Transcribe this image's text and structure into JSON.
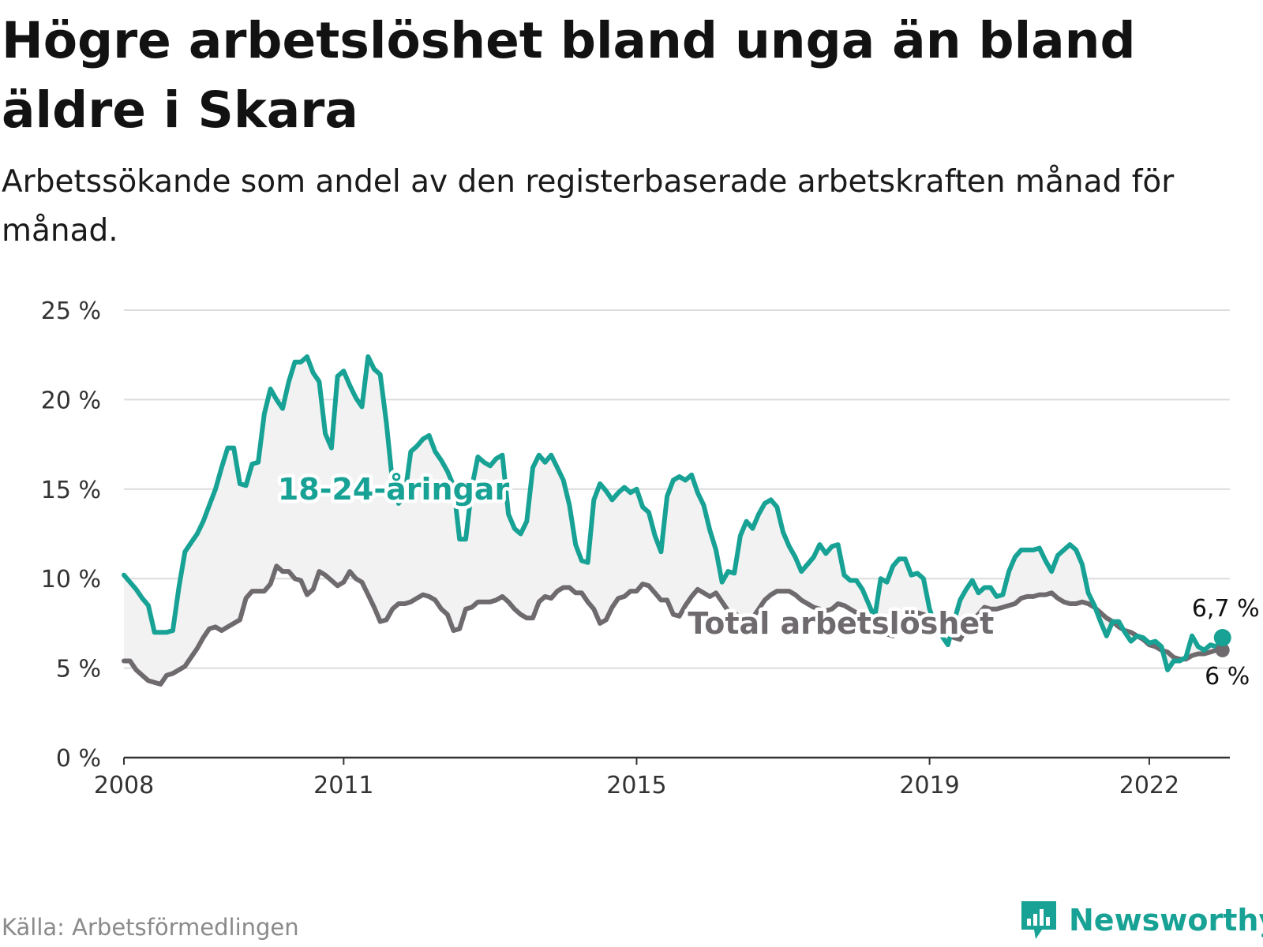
{
  "title": "Högre arbetslöshet bland unga än bland äldre i Skara",
  "subtitle": "Arbetssökande som andel av den registerbaserade arbetskraften månad för månad.",
  "source": "Källa: Arbetsförmedlingen",
  "brand": "Newsworthy",
  "colors": {
    "youth": "#17a295",
    "total": "#6e6a6e",
    "grid": "#dcdcdc",
    "axis": "#333333",
    "fill": "#f2f2f2"
  },
  "chart_data": {
    "type": "line",
    "x_start": "2008-01",
    "x_range": [
      2008,
      2023.1
    ],
    "ylim": [
      0,
      25
    ],
    "y_ticks": [
      0,
      5,
      10,
      15,
      20,
      25
    ],
    "y_tick_labels": [
      "0 %",
      "5 %",
      "10 %",
      "15 %",
      "20 %",
      "25 %"
    ],
    "x_ticks": [
      2008,
      2011,
      2015,
      2019,
      2022
    ],
    "x_tick_labels": [
      "2008",
      "2011",
      "2015",
      "2019",
      "2022"
    ],
    "grid": true,
    "series": [
      {
        "name": "18-24-åringar",
        "color": "#17a295",
        "end_label": "6,7 %",
        "values": [
          10.2,
          9.8,
          9.4,
          8.9,
          8.5,
          7.0,
          7.0,
          7.0,
          7.1,
          9.5,
          11.5,
          12.0,
          12.5,
          13.2,
          14.1,
          15.0,
          16.2,
          17.3,
          17.3,
          15.3,
          15.2,
          16.4,
          16.5,
          19.2,
          20.6,
          20.0,
          19.5,
          21.0,
          22.1,
          22.1,
          22.4,
          21.5,
          21.0,
          18.1,
          17.3,
          21.3,
          21.6,
          20.8,
          20.1,
          19.6,
          22.4,
          21.7,
          21.4,
          18.7,
          15.4,
          14.2,
          14.6,
          17.1,
          17.4,
          17.8,
          18.0,
          17.1,
          16.6,
          16.0,
          15.2,
          12.2,
          12.2,
          15.1,
          16.8,
          16.5,
          16.3,
          16.7,
          16.9,
          13.6,
          12.8,
          12.5,
          13.2,
          16.2,
          16.9,
          16.5,
          16.9,
          16.2,
          15.5,
          14.1,
          11.9,
          11.0,
          10.9,
          14.4,
          15.3,
          14.9,
          14.4,
          14.8,
          15.1,
          14.8,
          15.0,
          14.0,
          13.7,
          12.4,
          11.5,
          14.6,
          15.5,
          15.7,
          15.5,
          15.8,
          14.8,
          14.1,
          12.7,
          11.6,
          9.8,
          10.4,
          10.3,
          12.4,
          13.2,
          12.8,
          13.6,
          14.2,
          14.4,
          14.0,
          12.6,
          11.8,
          11.2,
          10.4,
          10.8,
          11.2,
          11.9,
          11.4,
          11.8,
          11.9,
          10.2,
          9.9,
          9.9,
          9.4,
          8.6,
          7.8,
          10.0,
          9.8,
          10.7,
          11.1,
          11.1,
          10.2,
          10.3,
          10.0,
          8.3,
          7.3,
          6.8,
          6.3,
          7.6,
          8.8,
          9.4,
          9.9,
          9.2,
          9.5,
          9.5,
          9.0,
          9.1,
          10.4,
          11.2,
          11.6,
          11.6,
          11.6,
          11.7,
          11.0,
          10.4,
          11.3,
          11.6,
          11.9,
          11.6,
          10.8,
          9.2,
          8.5,
          7.6,
          6.8,
          7.6,
          7.6,
          7.0,
          6.5,
          6.8,
          6.7,
          6.4,
          6.5,
          6.2,
          4.9,
          5.4,
          5.4,
          5.6,
          6.8,
          6.2,
          6.0,
          6.3,
          6.2,
          6.7
        ]
      },
      {
        "name": "Total arbetslöshet",
        "color": "#6e6a6e",
        "end_label": "6 %",
        "values": [
          5.4,
          5.4,
          4.9,
          4.6,
          4.3,
          4.2,
          4.1,
          4.6,
          4.7,
          4.9,
          5.1,
          5.6,
          6.1,
          6.7,
          7.2,
          7.3,
          7.1,
          7.3,
          7.5,
          7.7,
          8.9,
          9.3,
          9.3,
          9.3,
          9.7,
          10.7,
          10.4,
          10.4,
          10.0,
          9.9,
          9.1,
          9.4,
          10.4,
          10.2,
          9.9,
          9.6,
          9.8,
          10.4,
          10.0,
          9.8,
          9.1,
          8.4,
          7.6,
          7.7,
          8.3,
          8.6,
          8.6,
          8.7,
          8.9,
          9.1,
          9.0,
          8.8,
          8.3,
          8.0,
          7.1,
          7.2,
          8.3,
          8.4,
          8.7,
          8.7,
          8.7,
          8.8,
          9.0,
          8.7,
          8.3,
          8.0,
          7.8,
          7.8,
          8.7,
          9.0,
          8.9,
          9.3,
          9.5,
          9.5,
          9.2,
          9.2,
          8.7,
          8.3,
          7.5,
          7.7,
          8.4,
          8.9,
          9.0,
          9.3,
          9.3,
          9.7,
          9.6,
          9.2,
          8.8,
          8.8,
          8.0,
          7.9,
          8.5,
          9.0,
          9.4,
          9.2,
          9.0,
          9.2,
          8.7,
          8.2,
          8.1,
          7.8,
          7.6,
          7.8,
          8.3,
          8.8,
          9.1,
          9.3,
          9.3,
          9.3,
          9.1,
          8.8,
          8.6,
          8.4,
          8.3,
          8.2,
          8.3,
          8.6,
          8.5,
          8.3,
          8.1,
          8.0,
          7.8,
          7.7,
          7.4,
          6.9,
          6.8,
          7.3,
          7.5,
          7.7,
          8.1,
          8.0,
          7.8,
          7.6,
          7.2,
          6.9,
          6.7,
          6.6,
          7.2,
          7.7,
          8.0,
          8.4,
          8.3,
          8.3,
          8.4,
          8.5,
          8.6,
          8.9,
          9.0,
          9.0,
          9.1,
          9.1,
          9.2,
          8.9,
          8.7,
          8.6,
          8.6,
          8.7,
          8.6,
          8.4,
          8.1,
          7.8,
          7.6,
          7.3,
          7.1,
          7.0,
          6.8,
          6.6,
          6.3,
          6.2,
          6.0,
          5.9,
          5.6,
          5.5,
          5.5,
          5.7,
          5.8,
          5.8,
          5.9,
          6.0,
          6.0
        ]
      }
    ],
    "line_labels": [
      "18-24-åringar",
      "Total arbetslöshet"
    ]
  }
}
